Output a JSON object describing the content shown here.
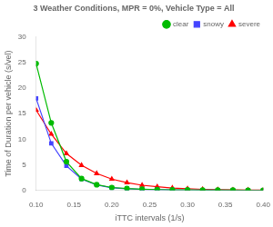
{
  "chart_data": {
    "type": "line",
    "title": "3 Weather Conditions, MPR = 0%, Vehicle Type = All",
    "x_label": "iTTC intervals (1/s)",
    "y_label": "Time of Duration per vehicle (s/vel)",
    "x": [
      0.1,
      0.12,
      0.14,
      0.16,
      0.18,
      0.2,
      0.22,
      0.24,
      0.26,
      0.28,
      0.3,
      0.32,
      0.34,
      0.36,
      0.38,
      0.4
    ],
    "series": [
      {
        "name": "clear",
        "color": "#00bb00",
        "marker": "circle",
        "values": [
          24.8,
          13.2,
          5.6,
          2.3,
          1.1,
          0.55,
          0.35,
          0.22,
          0.15,
          0.1,
          0.07,
          0.05,
          0.04,
          0.03,
          0.02,
          0.02
        ]
      },
      {
        "name": "snowy",
        "color": "#4444ff",
        "marker": "square",
        "values": [
          18.0,
          9.2,
          4.8,
          2.2,
          1.05,
          0.5,
          0.3,
          0.18,
          0.12,
          0.08,
          0.06,
          0.04,
          0.03,
          0.02,
          0.02,
          0.01
        ]
      },
      {
        "name": "severe",
        "color": "#ff0000",
        "marker": "triangle",
        "values": [
          15.7,
          11.0,
          7.2,
          4.9,
          3.3,
          2.2,
          1.5,
          1.0,
          0.7,
          0.45,
          0.3,
          0.2,
          0.12,
          0.08,
          0.05,
          0.03
        ]
      }
    ],
    "xlim": [
      0.1,
      0.4
    ],
    "ylim": [
      0,
      30
    ],
    "xticks": [
      {
        "value": 0.1,
        "label": "0.10"
      },
      {
        "value": 0.15,
        "label": "0.15"
      },
      {
        "value": 0.2,
        "label": "0.20"
      },
      {
        "value": 0.25,
        "label": "0.25"
      },
      {
        "value": 0.3,
        "label": "0.30"
      },
      {
        "value": 0.35,
        "label": "0.35"
      },
      {
        "value": 0.4,
        "label": "0.40"
      }
    ],
    "yticks": [
      0,
      5,
      10,
      15,
      20,
      25,
      30
    ],
    "legend": "upper right",
    "grid": false
  }
}
